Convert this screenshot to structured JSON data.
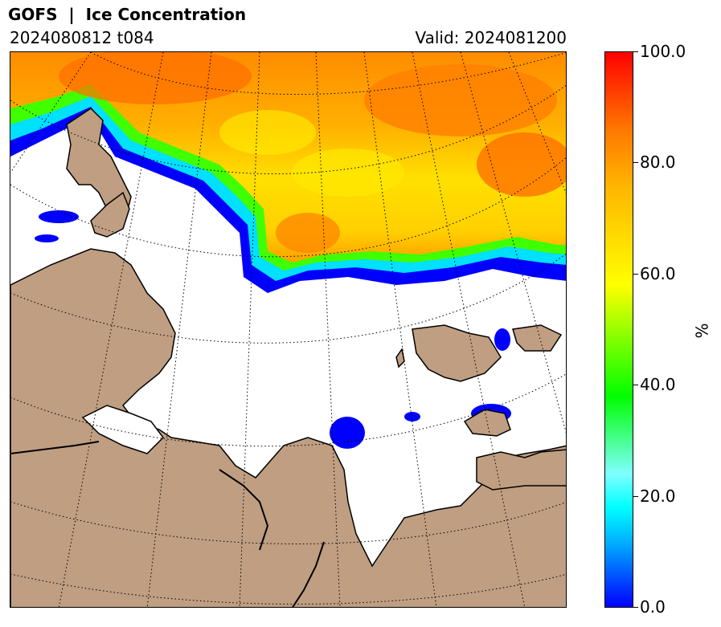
{
  "header": {
    "title": "GOFS  |  Ice Concentration",
    "run": "2024080812 t084",
    "valid": "Valid: 2024081200"
  },
  "map": {
    "colors": {
      "land": "#bf9e82",
      "ocean": "#ffffff",
      "coastline": "#000000",
      "graticule": "#000000"
    }
  },
  "colorbar": {
    "unit": "%",
    "ticks": [
      "100.0",
      "80.0",
      "60.0",
      "40.0",
      "20.0",
      "0.0"
    ],
    "min": 0,
    "max": 100,
    "colors": [
      "#0000ff",
      "#00ffff",
      "#00ff00",
      "#ffff00",
      "#ff7800",
      "#ff0000"
    ]
  }
}
